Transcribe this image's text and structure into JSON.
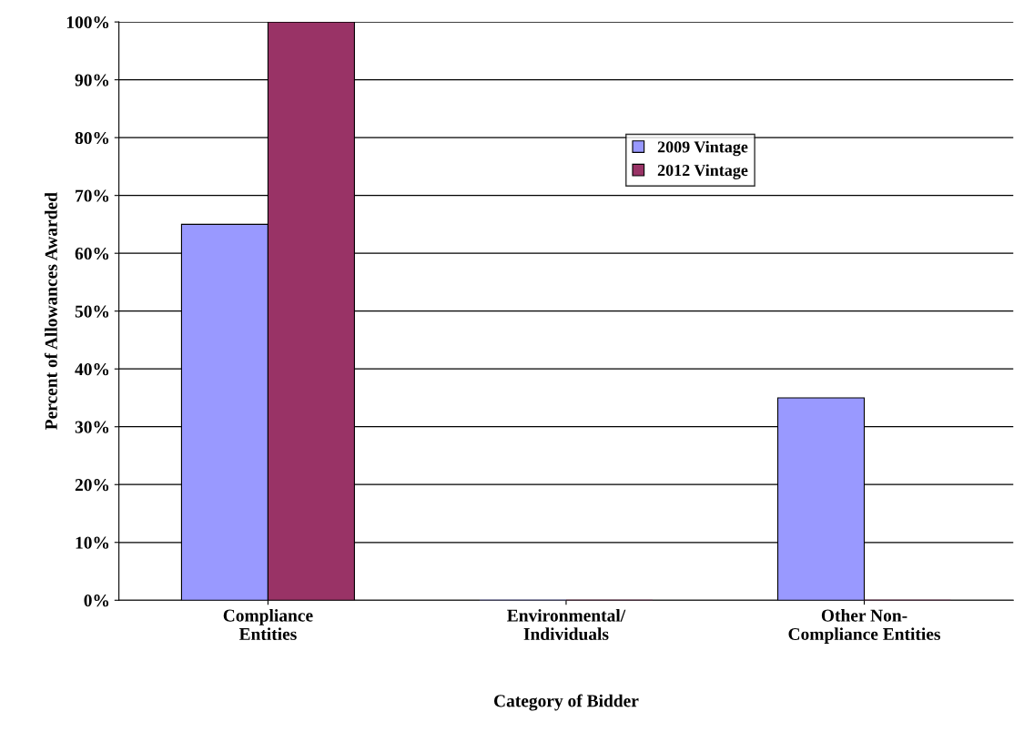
{
  "chart_data": {
    "type": "bar",
    "xlabel": "Category of Bidder",
    "ylabel": "Percent of Allowances Awarded",
    "categories": [
      "Compliance\nEntities",
      "Environmental/\nIndividuals",
      "Other Non-\nCompliance Entities"
    ],
    "series": [
      {
        "name": "2009 Vintage",
        "color": "#9999ff",
        "values": [
          65,
          0,
          35
        ]
      },
      {
        "name": "2012 Vintage",
        "color": "#993366",
        "values": [
          100,
          0,
          0
        ]
      }
    ],
    "ylim": [
      0,
      100
    ],
    "yticks": [
      {
        "value": 0,
        "label": "0%"
      },
      {
        "value": 10,
        "label": "10%"
      },
      {
        "value": 20,
        "label": "20%"
      },
      {
        "value": 30,
        "label": "30%"
      },
      {
        "value": 40,
        "label": "40%"
      },
      {
        "value": 50,
        "label": "50%"
      },
      {
        "value": 60,
        "label": "60%"
      },
      {
        "value": 70,
        "label": "70%"
      },
      {
        "value": 80,
        "label": "80%"
      },
      {
        "value": 90,
        "label": "90%"
      },
      {
        "value": 100,
        "label": "100%"
      }
    ],
    "grid": "y",
    "legend": "top right"
  }
}
